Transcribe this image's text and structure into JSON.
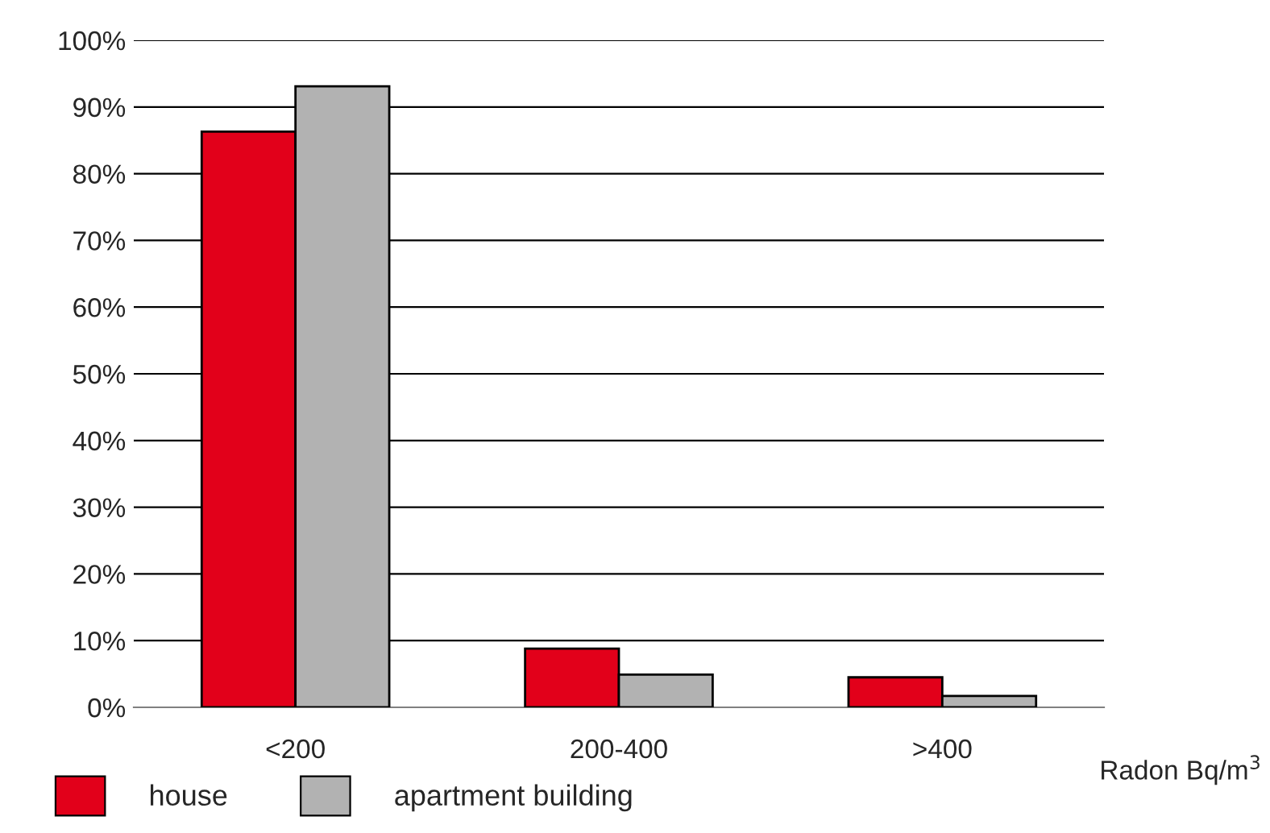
{
  "chart_data": {
    "type": "bar",
    "xlabel": "Radon Bq/m$^{3}$",
    "categories": [
      "<200",
      "200-400",
      ">400"
    ],
    "series": [
      {
        "name": "house",
        "color": "#e2001a",
        "values": [
          86.3,
          8.8,
          4.5
        ]
      },
      {
        "name": "apartment building",
        "color": "#b2b2b2",
        "values": [
          93.1,
          4.9,
          1.7
        ]
      }
    ],
    "ylim": [
      0,
      100
    ],
    "yticks": [
      {
        "value": 0,
        "label": "0%"
      },
      {
        "value": 10,
        "label": "10%"
      },
      {
        "value": 20,
        "label": "20%"
      },
      {
        "value": 30,
        "label": "30%"
      },
      {
        "value": 40,
        "label": "40%"
      },
      {
        "value": 50,
        "label": "50%"
      },
      {
        "value": 60,
        "label": "60%"
      },
      {
        "value": 70,
        "label": "70%"
      },
      {
        "value": 80,
        "label": "80%"
      },
      {
        "value": 90,
        "label": "90%"
      },
      {
        "value": 100,
        "label": "100%"
      }
    ],
    "grid": "y",
    "legend": "bottom left"
  }
}
